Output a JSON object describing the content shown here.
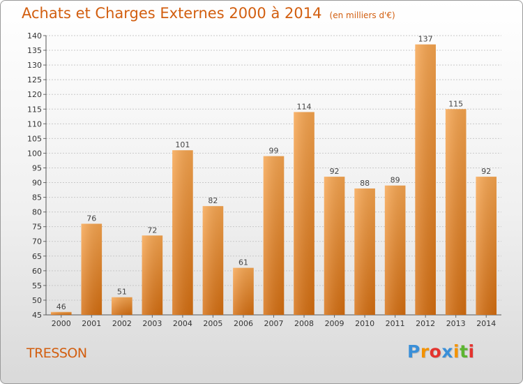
{
  "title": "Achats et Charges Externes 2000 à 2014",
  "subtitle": "(en milliers d'€)",
  "town": "TRESSON",
  "logo": {
    "letters": [
      "P",
      "r",
      "o",
      "x",
      "i",
      "t",
      "i"
    ],
    "colors": [
      "#3a8fd8",
      "#f39200",
      "#e4332e",
      "#3a8fd8",
      "#f39200",
      "#5cb531",
      "#e4332e"
    ]
  },
  "colors": {
    "bar_top": "#f7a54f",
    "bar_bottom": "#d56e10",
    "text_accent": "#d25e0f"
  },
  "chart_data": {
    "type": "bar",
    "title": "Achats et Charges Externes 2000 à 2014",
    "subtitle": "(en milliers d'€)",
    "categories": [
      "2000",
      "2001",
      "2002",
      "2003",
      "2004",
      "2005",
      "2006",
      "2007",
      "2008",
      "2009",
      "2010",
      "2011",
      "2012",
      "2013",
      "2014"
    ],
    "values": [
      46,
      76,
      51,
      72,
      101,
      82,
      61,
      99,
      114,
      92,
      88,
      89,
      137,
      115,
      92
    ],
    "ylim": [
      45,
      140
    ],
    "ytick_step": 5,
    "grid": "horizontal",
    "data_labels": true
  }
}
